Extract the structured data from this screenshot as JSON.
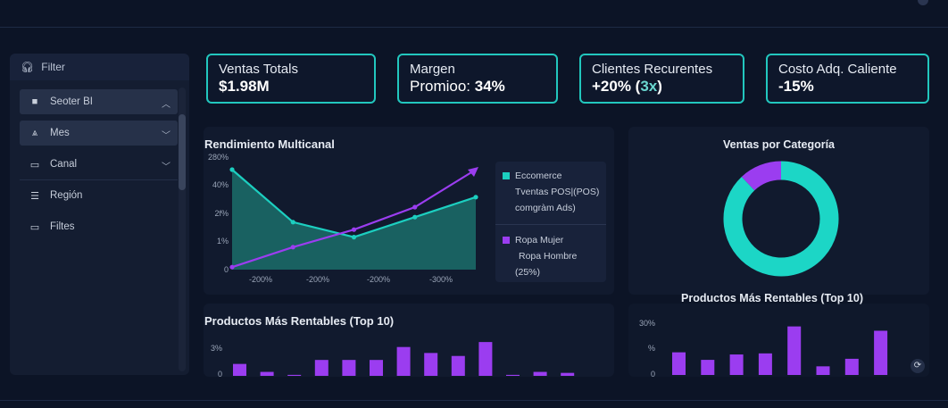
{
  "filter_panel": {
    "header": "Filter",
    "items": [
      {
        "label": "Seoter BI",
        "icon": "save-icon",
        "selected": true,
        "expand": "up"
      },
      {
        "label": "Mes",
        "icon": "filter-icon",
        "selected": true,
        "expand": "down"
      },
      {
        "label": "Canal",
        "icon": "monitor-icon",
        "selected": false,
        "expand": "down"
      },
      {
        "label": "Región",
        "icon": "list-icon",
        "selected": false,
        "expand": ""
      },
      {
        "label": "Filtes",
        "icon": "monitor-icon",
        "selected": false,
        "expand": ""
      }
    ]
  },
  "kpis": [
    {
      "label": "Ventas Totals",
      "value": "$1.98M"
    },
    {
      "label": "Margen",
      "value_prefix": "Promioo: ",
      "value": "34%"
    },
    {
      "label": "Clientes Recurentes",
      "value": "+20% (",
      "value_accent": "3x",
      "value_suffix": ")"
    },
    {
      "label": "Costo Adq. Caliente",
      "value": "-15%"
    }
  ],
  "multichannel": {
    "title": "Rendimiento Multicanal",
    "chart_data": {
      "type": "line",
      "y_ticks": [
        "280%",
        "40%",
        "2f%",
        "1%",
        "0"
      ],
      "x_ticks": [
        "-200%",
        "-200%",
        "-200%",
        "-300%"
      ],
      "series": [
        {
          "name": "Eccomerce",
          "color": "#1ccfc0",
          "values": [
            40,
            19,
            13,
            21,
            29
          ]
        },
        {
          "name": "Ropa Mujer",
          "color": "#9b3df0",
          "values": [
            1,
            9,
            16,
            25,
            40
          ]
        }
      ]
    },
    "legend": [
      {
        "lines": [
          "Eccomerce",
          "Tventas POS|(POS)",
          "comgràm Ads)"
        ],
        "color": "#1ccfc0"
      },
      {
        "lines": [
          "Ropa Mujer",
          "Ropa Hombre",
          "(25%)"
        ],
        "color": "#9b3df0"
      }
    ]
  },
  "category_sales": {
    "title": "Ventas por Categoría",
    "chart_data": {
      "type": "pie",
      "slices": [
        {
          "value": 88,
          "color": "#1cd6c6"
        },
        {
          "value": 12,
          "color": "#9b3df0"
        }
      ]
    }
  },
  "top_products_left": {
    "title": "Productos Más Rentables (Top 10)",
    "chart_data": {
      "type": "bar",
      "y_ticks": [
        "3%",
        "0"
      ],
      "max": 3.5,
      "values": [
        1.2,
        0.4,
        0.1,
        1.6,
        1.6,
        1.6,
        2.9,
        2.3,
        2.0,
        3.4,
        0.1,
        0.4,
        0.3
      ],
      "color": "#9b3df0"
    }
  },
  "top_products_right": {
    "title": "Productos Más Rentables (Top 10)",
    "chart_data": {
      "type": "bar",
      "y_ticks": [
        "30%",
        "%",
        "0"
      ],
      "max": 48,
      "values": [
        21,
        14,
        19,
        20,
        45,
        8,
        15,
        41
      ],
      "color": "#9b3df0"
    }
  }
}
